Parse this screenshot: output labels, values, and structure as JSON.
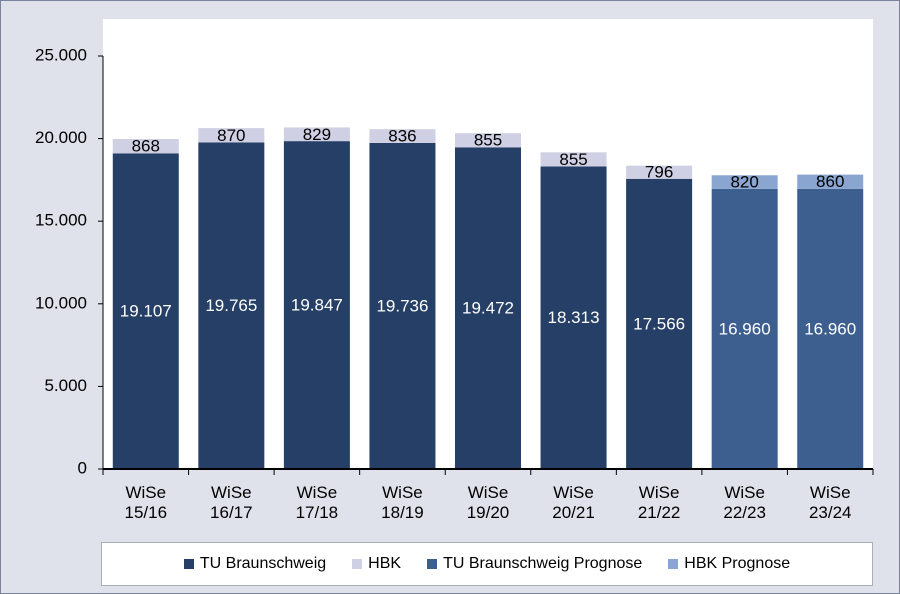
{
  "chart_data": {
    "type": "stacked_bar",
    "categories": [
      "WiSe 15/16",
      "WiSe 16/17",
      "WiSe 17/18",
      "WiSe 18/19",
      "WiSe 19/20",
      "WiSe 20/21",
      "WiSe 21/22",
      "WiSe 22/23",
      "WiSe 23/24"
    ],
    "series": [
      {
        "name": "TU Braunschweig",
        "color": "#253f66",
        "label_color": "#ffffff",
        "values": [
          19107,
          19765,
          19847,
          19736,
          19472,
          18313,
          17566,
          null,
          null
        ],
        "value_labels": [
          "19.107",
          "19.765",
          "19.847",
          "19.736",
          "19.472",
          "18.313",
          "17.566",
          null,
          null
        ]
      },
      {
        "name": "HBK",
        "color": "#cfd0e3",
        "label_color": "#000000",
        "values": [
          868,
          870,
          829,
          836,
          855,
          855,
          796,
          null,
          null
        ]
      },
      {
        "name": "TU Braunschweig Prognose",
        "color": "#3d5f8f",
        "label_color": "#ffffff",
        "values": [
          null,
          null,
          null,
          null,
          null,
          null,
          null,
          16960,
          16960
        ],
        "value_labels": [
          null,
          null,
          null,
          null,
          null,
          null,
          null,
          "16.960",
          "16.960"
        ]
      },
      {
        "name": "HBK Prognose",
        "color": "#8aa6d0",
        "label_color": "#000000",
        "values": [
          null,
          null,
          null,
          null,
          null,
          null,
          null,
          820,
          860
        ]
      }
    ],
    "ylim": [
      0,
      25000
    ],
    "yticks": [
      0,
      {
        "value": 5000,
        "label": "5.000"
      },
      {
        "value": 10000,
        "label": "10.000"
      },
      {
        "value": 15000,
        "label": "15.000"
      },
      {
        "value": 20000,
        "label": "20.000"
      },
      {
        "value": 25000,
        "label": "25.000"
      }
    ],
    "grid": false,
    "legend": "bottom"
  }
}
